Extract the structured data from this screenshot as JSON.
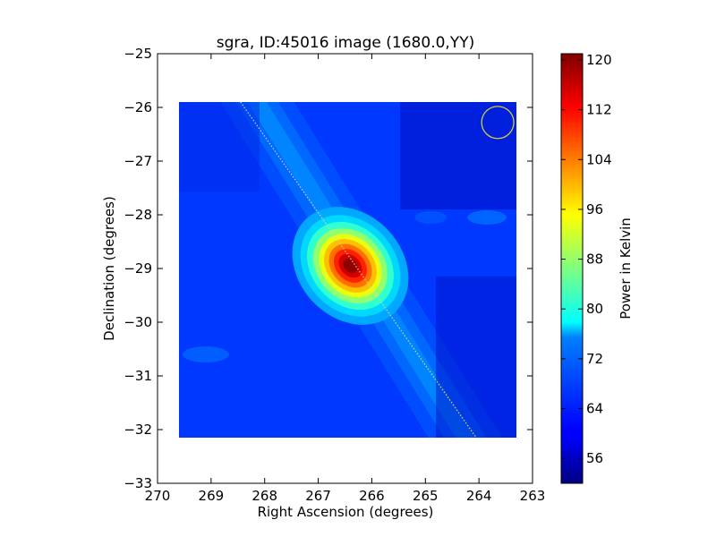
{
  "chart_data": {
    "type": "heatmap",
    "title": "sgra, ID:45016 image (1680.0,YY)",
    "xlabel": "Right Ascension (degrees)",
    "ylabel": "Declination (degrees)",
    "xlim": [
      270,
      263
    ],
    "ylim": [
      -33,
      -25
    ],
    "x_ticks": [
      "270",
      "269",
      "268",
      "267",
      "266",
      "265",
      "264",
      "263"
    ],
    "y_ticks": [
      "-25",
      "-26",
      "-27",
      "-28",
      "-29",
      "-30",
      "-31",
      "-32",
      "-33"
    ],
    "image_extent": {
      "ra": [
        269.6,
        263.3
      ],
      "dec": [
        -32.15,
        -25.9
      ]
    },
    "colormap": "jet",
    "colorbar": {
      "label": "Power in Kelvin",
      "range": [
        52,
        121
      ],
      "ticks": [
        "56",
        "64",
        "72",
        "80",
        "88",
        "96",
        "104",
        "112",
        "120"
      ]
    },
    "sources": [
      {
        "ra": 266.4,
        "dec": -28.95,
        "peak_kelvin": 121
      }
    ],
    "overlays": {
      "galactic_plane_line": [
        {
          "ra": 268.45,
          "dec": -25.9
        },
        {
          "ra": 264.05,
          "dec": -32.15
        }
      ],
      "beam_circle": {
        "ra": 263.65,
        "dec": -26.28,
        "radius_deg": 0.3,
        "color": "#d4c93a"
      }
    }
  }
}
